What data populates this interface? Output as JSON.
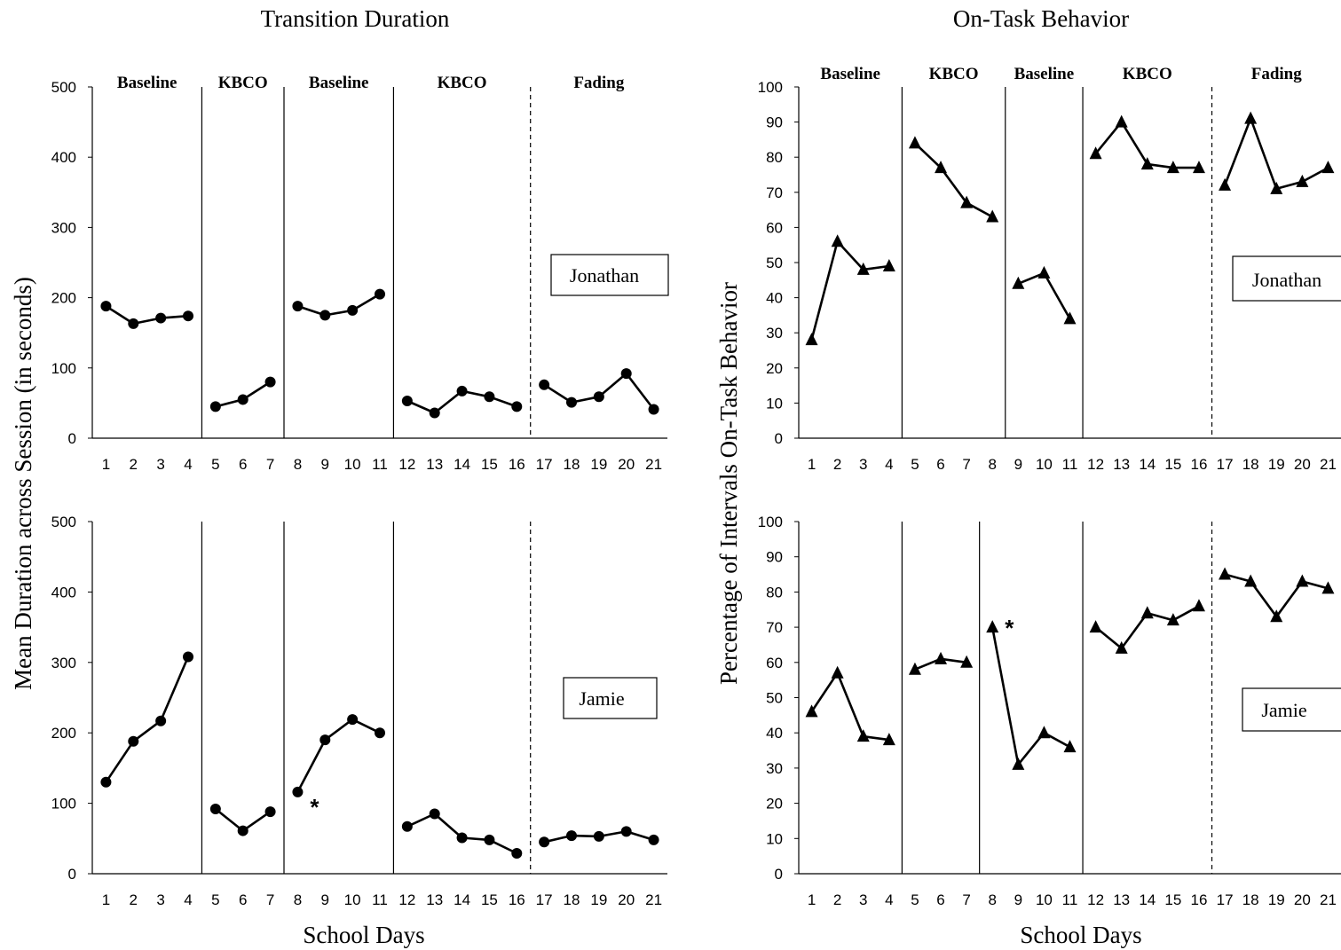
{
  "figure": {
    "left_title": "Transition Duration",
    "right_title": "On-Task Behavior",
    "left_ylabel": "Mean Duration across Session (in seconds)",
    "right_ylabel": "Percentage of Intervals  On-Task Behavior",
    "xlabel": "School Days",
    "phase_labels": [
      "Baseline",
      "KBCO",
      "Baseline",
      "KBCO",
      "Fading"
    ]
  },
  "chart_data": [
    {
      "type": "line",
      "title": "Transition Duration",
      "participant": "Jonathan",
      "ylabel": "Mean Duration across Session (in seconds)",
      "xlabel": "School Days",
      "ylim": [
        0,
        500
      ],
      "yticks": [
        0,
        100,
        200,
        300,
        400,
        500
      ],
      "marker": "circle",
      "x": [
        1,
        2,
        3,
        4,
        5,
        6,
        7,
        8,
        9,
        10,
        11,
        12,
        13,
        14,
        15,
        16,
        17,
        18,
        19,
        20,
        21
      ],
      "phase_lines": [
        {
          "after": 4,
          "style": "solid"
        },
        {
          "after": 7,
          "style": "solid"
        },
        {
          "after": 11,
          "style": "solid"
        },
        {
          "after": 16,
          "style": "dashed"
        }
      ],
      "phases": [
        {
          "name": "Baseline",
          "x": [
            1,
            2,
            3,
            4
          ],
          "values": [
            188,
            163,
            171,
            174
          ]
        },
        {
          "name": "KBCO",
          "x": [
            5,
            6,
            7
          ],
          "values": [
            45,
            55,
            80
          ]
        },
        {
          "name": "Baseline",
          "x": [
            8,
            9,
            10,
            11
          ],
          "values": [
            188,
            175,
            182,
            205
          ]
        },
        {
          "name": "KBCO",
          "x": [
            12,
            13,
            14,
            15,
            16
          ],
          "values": [
            53,
            36,
            67,
            59,
            45
          ]
        },
        {
          "name": "Fading",
          "x": [
            17,
            18,
            19,
            20,
            21
          ],
          "values": [
            76,
            51,
            59,
            92,
            41
          ]
        }
      ]
    },
    {
      "type": "line",
      "title": "Transition Duration",
      "participant": "Jamie",
      "ylabel": "Mean Duration across Session (in seconds)",
      "xlabel": "School Days",
      "ylim": [
        0,
        500
      ],
      "yticks": [
        0,
        100,
        200,
        300,
        400,
        500
      ],
      "marker": "circle",
      "x": [
        1,
        2,
        3,
        4,
        5,
        6,
        7,
        8,
        9,
        10,
        11,
        12,
        13,
        14,
        15,
        16,
        17,
        18,
        19,
        20,
        21
      ],
      "phase_lines": [
        {
          "after": 4,
          "style": "solid"
        },
        {
          "after": 7,
          "style": "solid"
        },
        {
          "after": 11,
          "style": "solid"
        },
        {
          "after": 16,
          "style": "dashed"
        }
      ],
      "phases": [
        {
          "name": "Baseline",
          "x": [
            1,
            2,
            3,
            4
          ],
          "values": [
            130,
            188,
            217,
            308
          ]
        },
        {
          "name": "KBCO",
          "x": [
            5,
            6,
            7
          ],
          "values": [
            92,
            61,
            88
          ]
        },
        {
          "name": "Baseline",
          "x": [
            8,
            9,
            10,
            11
          ],
          "values": [
            116,
            190,
            219,
            200
          ]
        },
        {
          "name": "KBCO",
          "x": [
            12,
            13,
            14,
            15,
            16
          ],
          "values": [
            67,
            85,
            51,
            48,
            29
          ]
        },
        {
          "name": "Fading",
          "x": [
            17,
            18,
            19,
            20,
            21
          ],
          "values": [
            45,
            54,
            53,
            60,
            48
          ]
        }
      ],
      "annotations": [
        {
          "text": "*",
          "x": 8
        }
      ]
    },
    {
      "type": "line",
      "title": "On-Task Behavior",
      "participant": "Jonathan",
      "ylabel": "Percentage of Intervals  On-Task Behavior",
      "xlabel": "School Days",
      "ylim": [
        0,
        100
      ],
      "yticks": [
        0,
        10,
        20,
        30,
        40,
        50,
        60,
        70,
        80,
        90,
        100
      ],
      "marker": "triangle",
      "x": [
        1,
        2,
        3,
        4,
        5,
        6,
        7,
        8,
        9,
        10,
        11,
        12,
        13,
        14,
        15,
        16,
        17,
        18,
        19,
        20,
        21
      ],
      "phase_lines": [
        {
          "after": 4,
          "style": "solid"
        },
        {
          "after": 8,
          "style": "solid"
        },
        {
          "after": 11,
          "style": "solid"
        },
        {
          "after": 16,
          "style": "dashed"
        }
      ],
      "phases": [
        {
          "name": "Baseline",
          "x": [
            1,
            2,
            3,
            4
          ],
          "values": [
            28,
            56,
            48,
            49
          ]
        },
        {
          "name": "KBCO",
          "x": [
            5,
            6,
            7,
            8
          ],
          "values": [
            84,
            77,
            67,
            63
          ]
        },
        {
          "name": "Baseline",
          "x": [
            9,
            10,
            11
          ],
          "values": [
            44,
            47,
            34
          ]
        },
        {
          "name": "KBCO",
          "x": [
            12,
            13,
            14,
            15,
            16
          ],
          "values": [
            81,
            90,
            78,
            77,
            77
          ]
        },
        {
          "name": "Fading",
          "x": [
            17,
            18,
            19,
            20,
            21
          ],
          "values": [
            72,
            91,
            71,
            73,
            77
          ]
        }
      ]
    },
    {
      "type": "line",
      "title": "On-Task Behavior",
      "participant": "Jamie",
      "ylabel": "Percentage of Intervals  On-Task Behavior",
      "xlabel": "School Days",
      "ylim": [
        0,
        100
      ],
      "yticks": [
        0,
        10,
        20,
        30,
        40,
        50,
        60,
        70,
        80,
        90,
        100
      ],
      "marker": "triangle",
      "x": [
        1,
        2,
        3,
        4,
        5,
        6,
        7,
        8,
        9,
        10,
        11,
        12,
        13,
        14,
        15,
        16,
        17,
        18,
        19,
        20,
        21
      ],
      "phase_lines": [
        {
          "after": 4,
          "style": "solid"
        },
        {
          "after": 7,
          "style": "solid"
        },
        {
          "after": 11,
          "style": "solid"
        },
        {
          "after": 16,
          "style": "dashed"
        }
      ],
      "phases": [
        {
          "name": "Baseline",
          "x": [
            1,
            2,
            3,
            4
          ],
          "values": [
            46,
            57,
            39,
            38
          ]
        },
        {
          "name": "KBCO",
          "x": [
            5,
            6,
            7
          ],
          "values": [
            58,
            61,
            60
          ]
        },
        {
          "name": "Baseline",
          "x": [
            8,
            9,
            10,
            11
          ],
          "values": [
            70,
            31,
            40,
            36
          ]
        },
        {
          "name": "KBCO",
          "x": [
            12,
            13,
            14,
            15,
            16
          ],
          "values": [
            70,
            64,
            74,
            72,
            76
          ]
        },
        {
          "name": "Fading",
          "x": [
            17,
            18,
            19,
            20,
            21
          ],
          "values": [
            85,
            83,
            73,
            83,
            81
          ]
        }
      ],
      "annotations": [
        {
          "text": "*",
          "x": 8
        }
      ]
    }
  ]
}
